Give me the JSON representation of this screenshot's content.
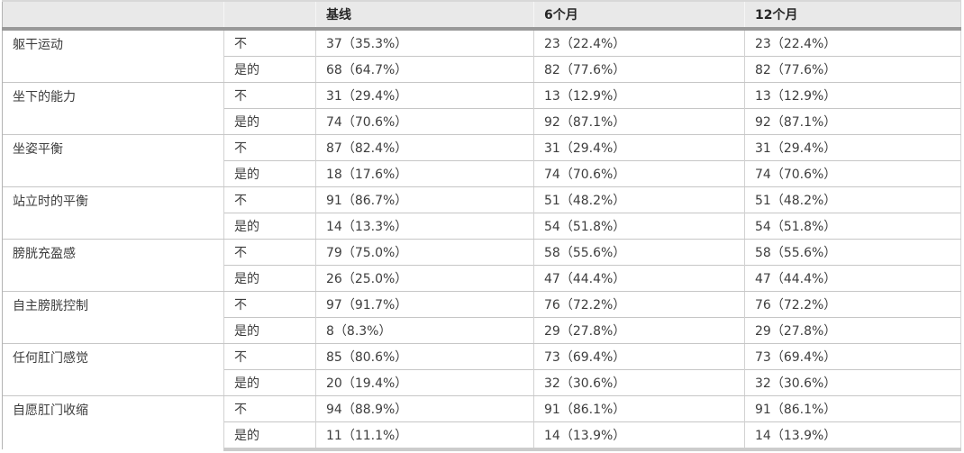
{
  "chart_data": {
    "type": "table",
    "columns": [
      "",
      "",
      "基线",
      "6个月",
      "12个月"
    ],
    "groups": [
      {
        "label": "躯干运动",
        "rows": [
          {
            "answer": "不",
            "baseline": "37（35.3%）",
            "six_months": "23（22.4%）",
            "twelve_months": "23（22.4%）"
          },
          {
            "answer": "是的",
            "baseline": "68（64.7%）",
            "six_months": "82（77.6%）",
            "twelve_months": "82（77.6%）"
          }
        ]
      },
      {
        "label": "坐下的能力",
        "rows": [
          {
            "answer": "不",
            "baseline": "31（29.4%）",
            "six_months": "13（12.9%）",
            "twelve_months": "13（12.9%）"
          },
          {
            "answer": "是的",
            "baseline": "74（70.6%）",
            "six_months": "92（87.1%）",
            "twelve_months": "92（87.1%）"
          }
        ]
      },
      {
        "label": "坐姿平衡",
        "rows": [
          {
            "answer": "不",
            "baseline": "87（82.4%）",
            "six_months": "31（29.4%）",
            "twelve_months": "31（29.4%）"
          },
          {
            "answer": "是的",
            "baseline": "18（17.6%）",
            "six_months": "74（70.6%）",
            "twelve_months": "74（70.6%）"
          }
        ]
      },
      {
        "label": "站立时的平衡",
        "rows": [
          {
            "answer": "不",
            "baseline": "91（86.7%）",
            "six_months": "51（48.2%）",
            "twelve_months": "51（48.2%）"
          },
          {
            "answer": "是的",
            "baseline": "14（13.3%）",
            "six_months": "54（51.8%）",
            "twelve_months": "54（51.8%）"
          }
        ]
      },
      {
        "label": "膀胱充盈感",
        "rows": [
          {
            "answer": "不",
            "baseline": "79（75.0%）",
            "six_months": "58（55.6%）",
            "twelve_months": "58（55.6%）"
          },
          {
            "answer": "是的",
            "baseline": "26（25.0%）",
            "six_months": "47（44.4%）",
            "twelve_months": "47（44.4%）"
          }
        ]
      },
      {
        "label": "自主膀胱控制",
        "rows": [
          {
            "answer": "不",
            "baseline": "97（91.7%）",
            "six_months": "76（72.2%）",
            "twelve_months": "76（72.2%）"
          },
          {
            "answer": "是的",
            "baseline": "8（8.3%）",
            "six_months": "29（27.8%）",
            "twelve_months": "29（27.8%）"
          }
        ]
      },
      {
        "label": "任何肛门感觉",
        "rows": [
          {
            "answer": "不",
            "baseline": "85（80.6%）",
            "six_months": "73（69.4%）",
            "twelve_months": "73（69.4%）"
          },
          {
            "answer": "是的",
            "baseline": "20（19.4%）",
            "six_months": "32（30.6%）",
            "twelve_months": "32（30.6%）"
          }
        ]
      },
      {
        "label": "自愿肛门收缩",
        "rows": [
          {
            "answer": "不",
            "baseline": "94（88.9%）",
            "six_months": "91（86.1%）",
            "twelve_months": "91（86.1%）"
          },
          {
            "answer": "是的",
            "baseline": "11（11.1%）",
            "six_months": "14（13.9%）",
            "twelve_months": "14（13.9%）"
          }
        ]
      }
    ]
  },
  "header": {
    "category": "",
    "answer": "",
    "baseline": "基线",
    "six_months": "6个月",
    "twelve_months": "12个月"
  },
  "groups": [
    {
      "label": "躯干运动",
      "rows": [
        {
          "answer": "不",
          "baseline": "37（35.3%）",
          "six_months": "23（22.4%）",
          "twelve_months": "23（22.4%）"
        },
        {
          "answer": "是的",
          "baseline": "68（64.7%）",
          "six_months": "82（77.6%）",
          "twelve_months": "82（77.6%）"
        }
      ]
    },
    {
      "label": "坐下的能力",
      "rows": [
        {
          "answer": "不",
          "baseline": "31（29.4%）",
          "six_months": "13（12.9%）",
          "twelve_months": "13（12.9%）"
        },
        {
          "answer": "是的",
          "baseline": "74（70.6%）",
          "six_months": "92（87.1%）",
          "twelve_months": "92（87.1%）"
        }
      ]
    },
    {
      "label": "坐姿平衡",
      "rows": [
        {
          "answer": "不",
          "baseline": "87（82.4%）",
          "six_months": "31（29.4%）",
          "twelve_months": "31（29.4%）"
        },
        {
          "answer": "是的",
          "baseline": "18（17.6%）",
          "six_months": "74（70.6%）",
          "twelve_months": "74（70.6%）"
        }
      ]
    },
    {
      "label": "站立时的平衡",
      "rows": [
        {
          "answer": "不",
          "baseline": "91（86.7%）",
          "six_months": "51（48.2%）",
          "twelve_months": "51（48.2%）"
        },
        {
          "answer": "是的",
          "baseline": "14（13.3%）",
          "six_months": "54（51.8%）",
          "twelve_months": "54（51.8%）"
        }
      ]
    },
    {
      "label": "膀胱充盈感",
      "rows": [
        {
          "answer": "不",
          "baseline": "79（75.0%）",
          "six_months": "58（55.6%）",
          "twelve_months": "58（55.6%）"
        },
        {
          "answer": "是的",
          "baseline": "26（25.0%）",
          "six_months": "47（44.4%）",
          "twelve_months": "47（44.4%）"
        }
      ]
    },
    {
      "label": "自主膀胱控制",
      "rows": [
        {
          "answer": "不",
          "baseline": "97（91.7%）",
          "six_months": "76（72.2%）",
          "twelve_months": "76（72.2%）"
        },
        {
          "answer": "是的",
          "baseline": "8（8.3%）",
          "six_months": "29（27.8%）",
          "twelve_months": "29（27.8%）"
        }
      ]
    },
    {
      "label": "任何肛门感觉",
      "rows": [
        {
          "answer": "不",
          "baseline": "85（80.6%）",
          "six_months": "73（69.4%）",
          "twelve_months": "73（69.4%）"
        },
        {
          "answer": "是的",
          "baseline": "20（19.4%）",
          "six_months": "32（30.6%）",
          "twelve_months": "32（30.6%）"
        }
      ]
    },
    {
      "label": "自愿肛门收缩",
      "rows": [
        {
          "answer": "不",
          "baseline": "94（88.9%）",
          "six_months": "91（86.1%）",
          "twelve_months": "91（86.1%）"
        },
        {
          "answer": "是的",
          "baseline": "11（11.1%）",
          "six_months": "14（13.9%）",
          "twelve_months": "14（13.9%）"
        }
      ]
    }
  ],
  "colors": {
    "header_bg": "#e9e9e9",
    "header_rule": "#999999",
    "grid_line": "#c6c6c6",
    "bottom_bar": "#cccccc",
    "body_text": "#3d3d3d",
    "header_text": "#262626"
  }
}
